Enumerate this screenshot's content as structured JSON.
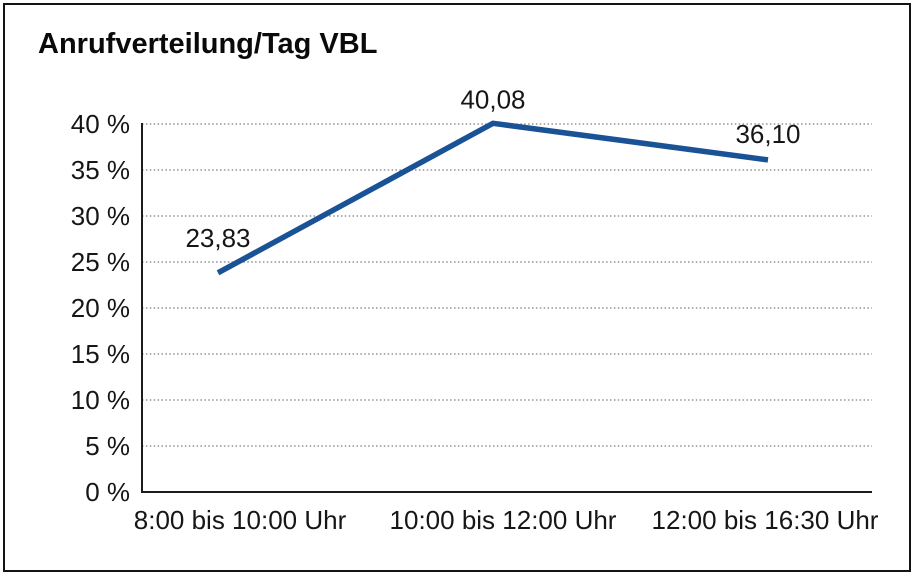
{
  "page": {
    "title": "Anrufverteilung/Tag VBL"
  },
  "chart_data": {
    "type": "line",
    "title": "Anrufverteilung/Tag VBL",
    "categories": [
      "8:00 bis 10:00 Uhr",
      "10:00 bis 12:00 Uhr",
      "12:00 bis 16:30 Uhr"
    ],
    "series": [
      {
        "name": "Anrufverteilung",
        "values": [
          23.83,
          40.08,
          36.1
        ],
        "point_labels": [
          "23,83",
          "40,08",
          "36,10"
        ]
      }
    ],
    "xlabel": "",
    "ylabel": "",
    "ylim": [
      0,
      40
    ],
    "y_tick_step": 5,
    "y_ticks": [
      0,
      5,
      10,
      15,
      20,
      25,
      30,
      35,
      40
    ],
    "y_tick_labels": [
      "0 %",
      "5 %",
      "10 %",
      "15 %",
      "20 %",
      "25 %",
      "30 %",
      "35 %",
      "40 %"
    ],
    "grid": "horizontal-dotted",
    "legend_position": "none",
    "colors": {
      "line": "#1a5296",
      "axis": "#1c1c1c",
      "gridline": "#7d7d7d",
      "text": "#161616",
      "background": "#ffffff",
      "frame_border": "#141414"
    }
  }
}
